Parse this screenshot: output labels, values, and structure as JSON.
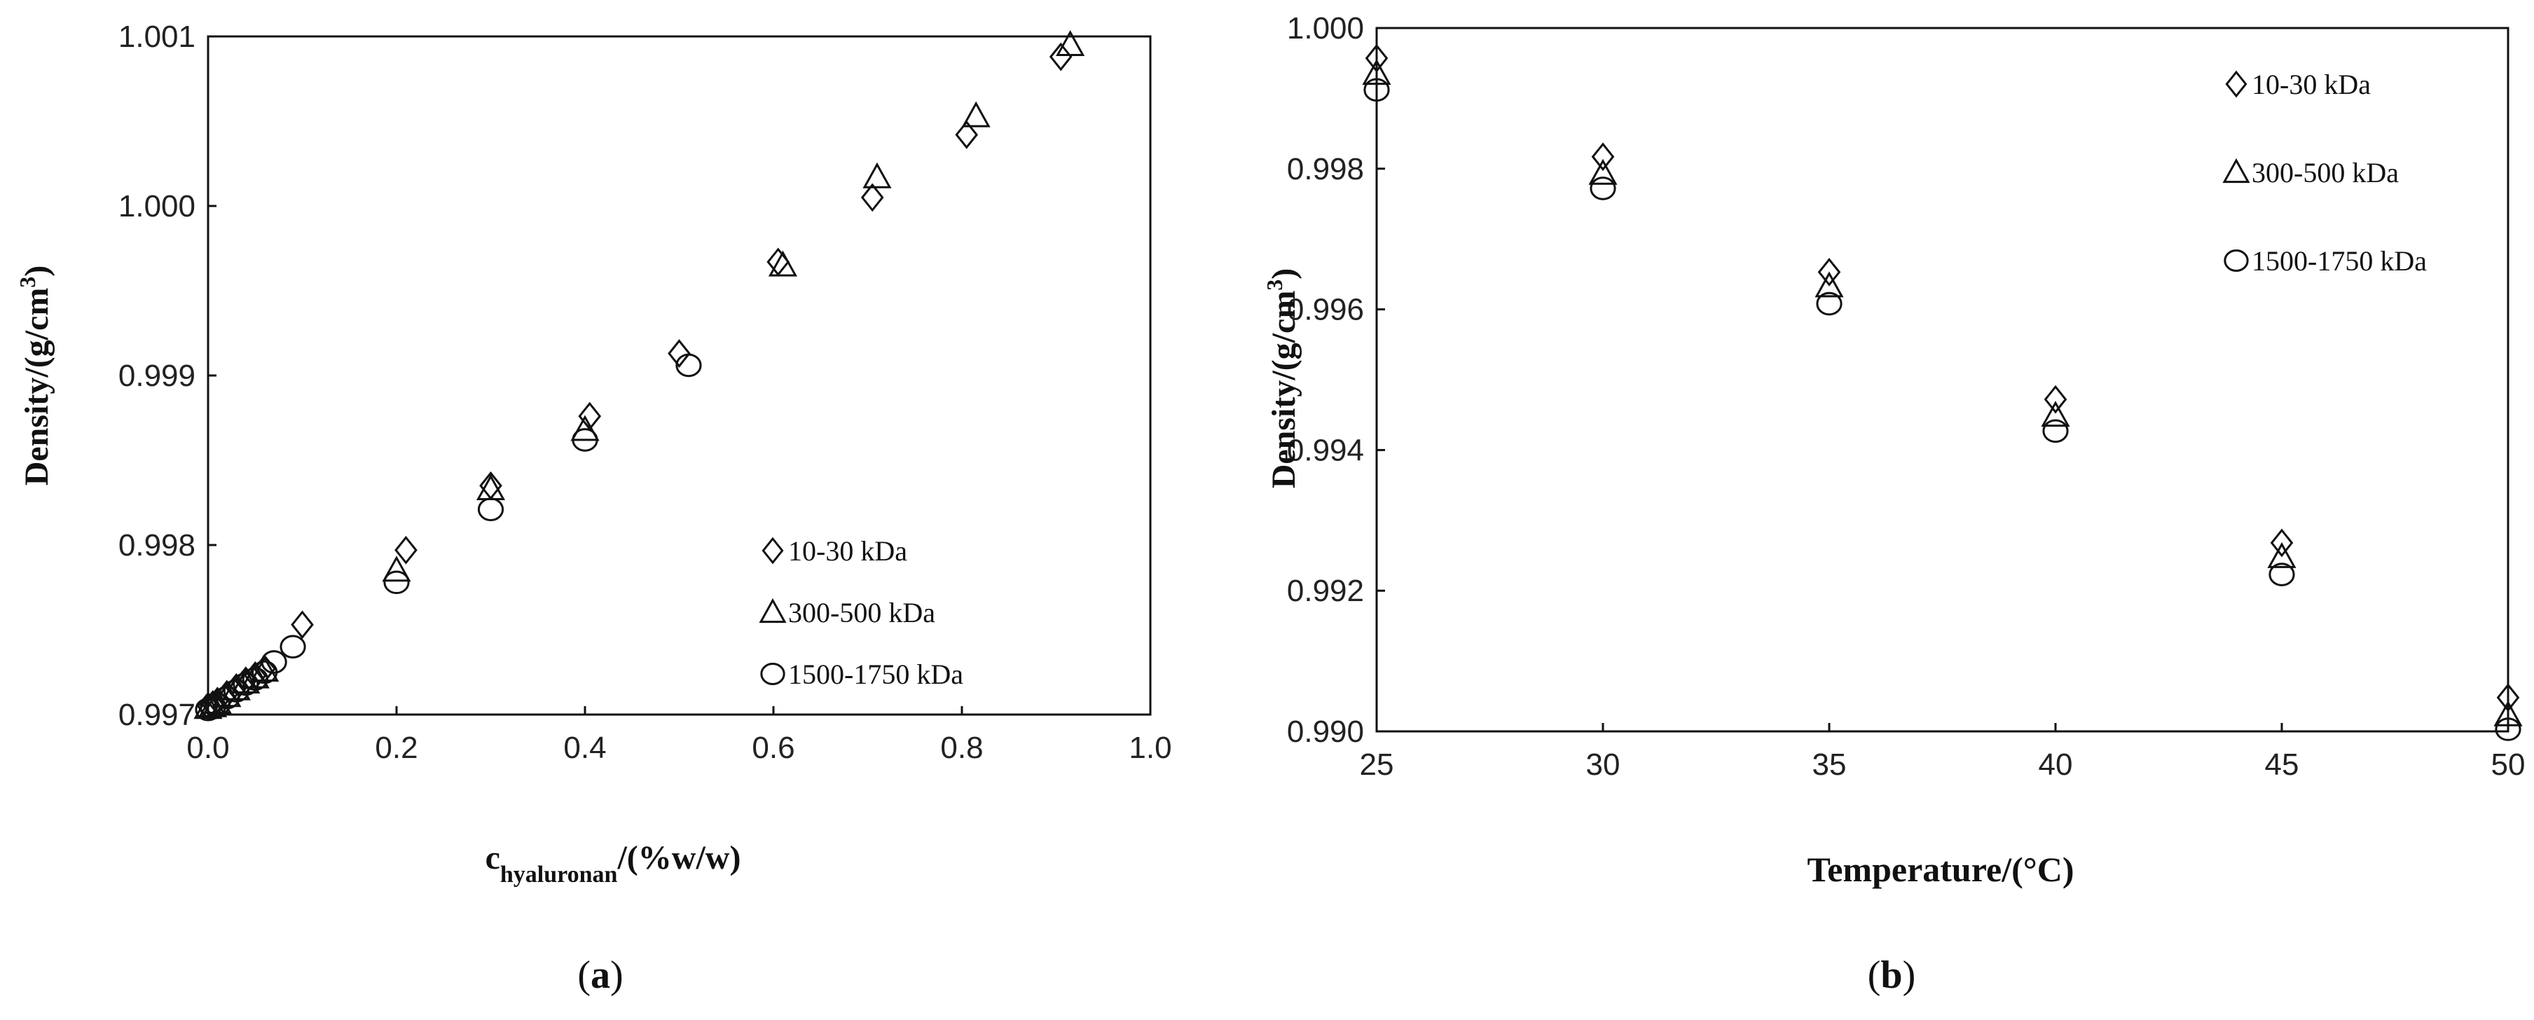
{
  "chart_data": [
    {
      "type": "scatter",
      "panel_label": "a",
      "xlabel_main": "c",
      "xlabel_sub": "hyaluronan",
      "xlabel_rest": "/(%w/w)",
      "ylabel_main": "Density/(g/cm",
      "ylabel_sup": "3",
      "ylabel_end": ")",
      "xlim": [
        0.0,
        1.0
      ],
      "ylim": [
        0.997,
        1.001
      ],
      "xticks": [
        "0.0",
        "0.2",
        "0.4",
        "0.6",
        "0.8",
        "1.0"
      ],
      "yticks": [
        "0.997",
        "0.998",
        "0.999",
        "1.000",
        "1.001"
      ],
      "legend_position": "bottom-right",
      "grid": false,
      "series": [
        {
          "name": "10-30 kDa",
          "marker": "diamond",
          "x": [
            0.0,
            0.005,
            0.01,
            0.02,
            0.03,
            0.04,
            0.05,
            0.06,
            0.1,
            0.21,
            0.3,
            0.405,
            0.5,
            0.605,
            0.705,
            0.805,
            0.905
          ],
          "y": [
            0.99705,
            0.99706,
            0.99708,
            0.99712,
            0.99716,
            0.9972,
            0.99723,
            0.99727,
            0.99753,
            0.99797,
            0.99835,
            0.99876,
            0.99913,
            0.99967,
            1.00005,
            1.00042,
            1.00088
          ]
        },
        {
          "name": "300-500 kDa",
          "marker": "triangle",
          "x": [
            0.0,
            0.005,
            0.01,
            0.02,
            0.03,
            0.04,
            0.05,
            0.06,
            0.2,
            0.3,
            0.4,
            0.61,
            0.71,
            0.815,
            0.915
          ],
          "y": [
            0.99704,
            0.99705,
            0.99707,
            0.99711,
            0.99715,
            0.99719,
            0.99722,
            0.99726,
            0.99785,
            0.99833,
            0.99868,
            0.99965,
            1.00017,
            1.00053,
            1.00095
          ]
        },
        {
          "name": "1500-1750 kDa",
          "marker": "circle",
          "x": [
            0.0,
            0.005,
            0.01,
            0.02,
            0.03,
            0.04,
            0.05,
            0.06,
            0.07,
            0.09,
            0.2,
            0.3,
            0.4,
            0.51
          ],
          "y": [
            0.99703,
            0.99704,
            0.99706,
            0.9971,
            0.99714,
            0.99718,
            0.99721,
            0.99725,
            0.99731,
            0.9974,
            0.99778,
            0.99821,
            0.99862,
            0.99906
          ]
        }
      ]
    },
    {
      "type": "scatter",
      "panel_label": "b",
      "xlabel_main": "Temperature/(°C)",
      "ylabel_main": "Density/(g/cm",
      "ylabel_sup": "3",
      "ylabel_end": ")",
      "xlim": [
        25,
        50
      ],
      "ylim": [
        0.99,
        1.0
      ],
      "xticks": [
        "25",
        "30",
        "35",
        "40",
        "45",
        "50"
      ],
      "yticks": [
        "0.990",
        "0.992",
        "0.994",
        "0.996",
        "0.998",
        "1.000"
      ],
      "legend_position": "top-right",
      "grid": false,
      "series": [
        {
          "name": "10-30 kDa",
          "marker": "diamond",
          "x": [
            25,
            30,
            35,
            40,
            45,
            50
          ],
          "y": [
            0.99957,
            0.99817,
            0.99653,
            0.99472,
            0.99268,
            0.99048
          ]
        },
        {
          "name": "300-500 kDa",
          "marker": "triangle",
          "x": [
            25,
            30,
            35,
            40,
            45,
            50
          ],
          "y": [
            0.99935,
            0.99793,
            0.99633,
            0.99449,
            0.99248,
            0.99023
          ]
        },
        {
          "name": "1500-1750 kDa",
          "marker": "circle",
          "x": [
            25,
            30,
            35,
            40,
            45,
            50
          ],
          "y": [
            0.99912,
            0.99772,
            0.99608,
            0.99427,
            0.99223,
            0.99003
          ]
        }
      ]
    }
  ]
}
